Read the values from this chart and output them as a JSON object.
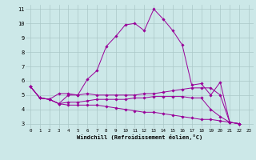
{
  "xlabel": "Windchill (Refroidissement éolien,°C)",
  "x": [
    0,
    1,
    2,
    3,
    4,
    5,
    6,
    7,
    8,
    9,
    10,
    11,
    12,
    13,
    14,
    15,
    16,
    17,
    18,
    19,
    20,
    21,
    22,
    23
  ],
  "line1": [
    5.6,
    4.8,
    4.7,
    5.1,
    5.1,
    5.0,
    6.1,
    6.7,
    8.4,
    9.1,
    9.9,
    10.0,
    9.5,
    11.0,
    10.3,
    9.5,
    8.5,
    5.7,
    5.8,
    5.0,
    5.9,
    3.1,
    3.0,
    null
  ],
  "line2": [
    5.6,
    4.8,
    4.7,
    4.4,
    5.0,
    5.0,
    5.1,
    5.0,
    5.0,
    5.0,
    5.0,
    5.0,
    5.1,
    5.1,
    5.2,
    5.3,
    5.4,
    5.5,
    5.5,
    5.5,
    5.0,
    3.1,
    3.0,
    null
  ],
  "line3": [
    5.6,
    4.8,
    4.7,
    4.4,
    4.5,
    4.5,
    4.6,
    4.7,
    4.7,
    4.7,
    4.7,
    4.8,
    4.8,
    4.9,
    4.9,
    4.9,
    4.9,
    4.8,
    4.8,
    4.0,
    3.5,
    3.1,
    3.0,
    null
  ],
  "line4": [
    5.6,
    4.8,
    4.7,
    4.4,
    4.3,
    4.3,
    4.3,
    4.3,
    4.2,
    4.1,
    4.0,
    3.9,
    3.8,
    3.8,
    3.7,
    3.6,
    3.5,
    3.4,
    3.3,
    3.3,
    3.2,
    3.1,
    3.0,
    null
  ],
  "line_color": "#990099",
  "bg_color": "#cce8e8",
  "grid_color": "#aac8c8",
  "ylim": [
    2.7,
    11.3
  ],
  "xlim": [
    -0.5,
    23.5
  ],
  "yticks": [
    3,
    4,
    5,
    6,
    7,
    8,
    9,
    10,
    11
  ],
  "xticks": [
    0,
    1,
    2,
    3,
    4,
    5,
    6,
    7,
    8,
    9,
    10,
    11,
    12,
    13,
    14,
    15,
    16,
    17,
    18,
    19,
    20,
    21,
    22,
    23
  ]
}
